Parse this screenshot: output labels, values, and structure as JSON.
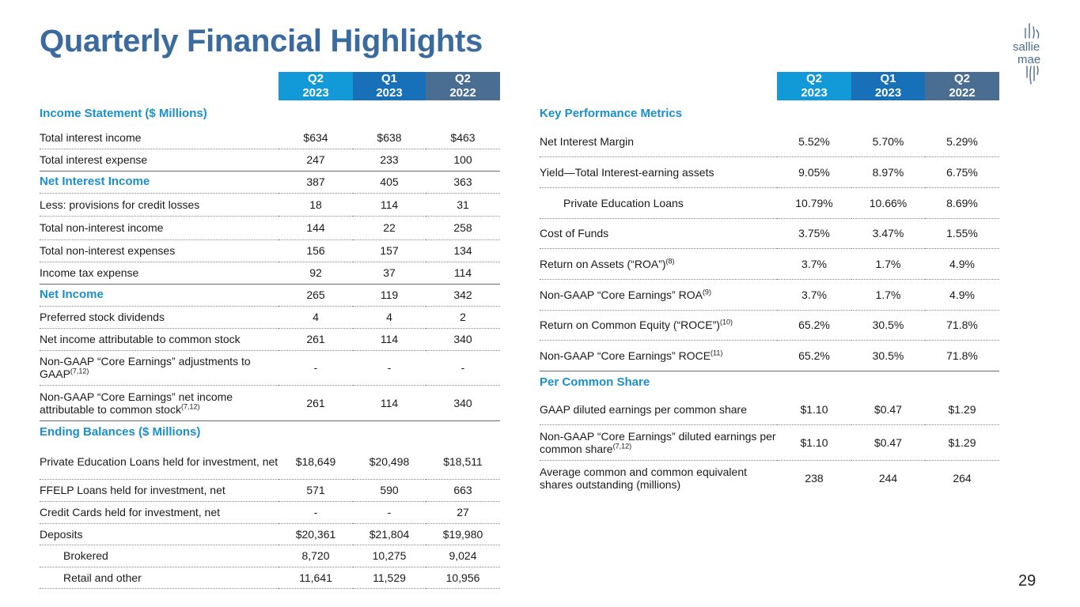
{
  "title": "Quarterly Financial Highlights",
  "page_number": "29",
  "logo": {
    "line1": "sallie",
    "line2": "mae",
    "icon": "sallie-mae-logo-icon"
  },
  "columns": [
    {
      "line1": "Q2",
      "line2": "2023"
    },
    {
      "line1": "Q1",
      "line2": "2023"
    },
    {
      "line1": "Q2",
      "line2": "2022"
    }
  ],
  "colors": {
    "title": "#3a6a9e",
    "section": "#1b8fc9",
    "col1": "#1199d8",
    "col2": "#1870b8",
    "col3": "#4a6d92"
  },
  "left": {
    "income_statement": {
      "heading": "Income Statement ($ Millions)",
      "rows": [
        {
          "label": "Total interest income",
          "values": [
            "$634",
            "$638",
            "$463"
          ]
        },
        {
          "label": "Total interest expense",
          "values": [
            "247",
            "233",
            "100"
          ]
        },
        {
          "label": "Net Interest Income",
          "values": [
            "387",
            "405",
            "363"
          ]
        },
        {
          "label": "Less: provisions for credit losses",
          "values": [
            "18",
            "114",
            "31"
          ]
        },
        {
          "label": "Total non-interest income",
          "values": [
            "144",
            "22",
            "258"
          ]
        },
        {
          "label": "Total non-interest expenses",
          "values": [
            "156",
            "157",
            "134"
          ]
        },
        {
          "label": "Income tax expense",
          "values": [
            "92",
            "37",
            "114"
          ]
        },
        {
          "label": "Net Income",
          "values": [
            "265",
            "119",
            "342"
          ]
        },
        {
          "label": "Preferred stock dividends",
          "values": [
            "4",
            "4",
            "2"
          ]
        },
        {
          "label": "Net income attributable to common stock",
          "values": [
            "261",
            "114",
            "340"
          ]
        },
        {
          "label": "Non-GAAP “Core Earnings” adjustments to GAAP",
          "sup": "(7,12)",
          "values": [
            "-",
            "-",
            "-"
          ]
        },
        {
          "label": "Non-GAAP “Core Earnings” net income attributable to common stock",
          "sup": "(7,12)",
          "values": [
            "261",
            "114",
            "340"
          ]
        }
      ]
    },
    "ending_balances": {
      "heading": "Ending Balances ($ Millions)",
      "rows": [
        {
          "label": "Private Education Loans held for investment, net",
          "values": [
            "$18,649",
            "$20,498",
            "$18,511"
          ]
        },
        {
          "label": "FFELP Loans held for investment, net",
          "values": [
            "571",
            "590",
            "663"
          ]
        },
        {
          "label": "Credit Cards held for investment, net",
          "values": [
            "-",
            "-",
            "27"
          ]
        },
        {
          "label": "Deposits",
          "values": [
            "$20,361",
            "$21,804",
            "$19,980"
          ]
        },
        {
          "label": "Brokered",
          "values": [
            "8,720",
            "10,275",
            "9,024"
          ]
        },
        {
          "label": "Retail and other",
          "values": [
            "11,641",
            "11,529",
            "10,956"
          ]
        }
      ]
    }
  },
  "right": {
    "key_metrics": {
      "heading": "Key Performance Metrics",
      "rows": [
        {
          "label": "Net Interest Margin",
          "values": [
            "5.52%",
            "5.70%",
            "5.29%"
          ]
        },
        {
          "label": "Yield—Total Interest-earning assets",
          "values": [
            "9.05%",
            "8.97%",
            "6.75%"
          ]
        },
        {
          "label": "Private Education Loans",
          "values": [
            "10.79%",
            "10.66%",
            "8.69%"
          ]
        },
        {
          "label": "Cost of Funds",
          "values": [
            "3.75%",
            "3.47%",
            "1.55%"
          ]
        },
        {
          "label": "Return on Assets (“ROA”)",
          "sup": "(8)",
          "values": [
            "3.7%",
            "1.7%",
            "4.9%"
          ]
        },
        {
          "label": "Non-GAAP “Core Earnings” ROA",
          "sup": "(9)",
          "values": [
            "3.7%",
            "1.7%",
            "4.9%"
          ]
        },
        {
          "label": "Return on Common Equity (“ROCE”)",
          "sup": "(10)",
          "values": [
            "65.2%",
            "30.5%",
            "71.8%"
          ]
        },
        {
          "label": "Non-GAAP “Core Earnings” ROCE",
          "sup": "(11)",
          "values": [
            "65.2%",
            "30.5%",
            "71.8%"
          ]
        }
      ]
    },
    "per_share": {
      "heading": "Per Common Share",
      "rows": [
        {
          "label": "GAAP diluted earnings per common share",
          "values": [
            "$1.10",
            "$0.47",
            "$1.29"
          ]
        },
        {
          "label": "Non-GAAP “Core Earnings” diluted earnings per common share",
          "sup": "(7,12)",
          "values": [
            "$1.10",
            "$0.47",
            "$1.29"
          ]
        },
        {
          "label": "Average common and common equivalent shares outstanding (millions)",
          "values": [
            "238",
            "244",
            "264"
          ]
        }
      ]
    }
  }
}
